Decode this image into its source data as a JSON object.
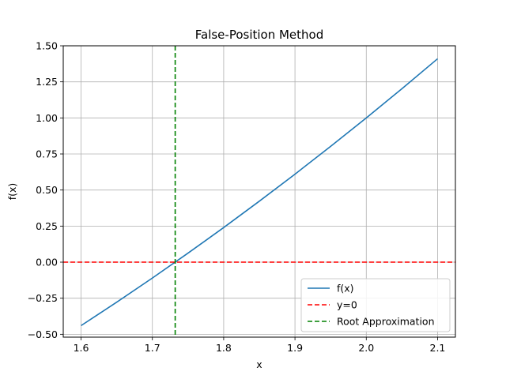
{
  "chart_data": {
    "type": "line",
    "title": "False-Position Method",
    "xlabel": "x",
    "ylabel": "f(x)",
    "xlim": [
      1.575,
      2.125
    ],
    "ylim": [
      -0.52,
      1.5
    ],
    "xticks": [
      1.6,
      1.7,
      1.8,
      1.9,
      2.0,
      2.1
    ],
    "xtick_labels": [
      "1.6",
      "1.7",
      "1.8",
      "1.9",
      "2.0",
      "2.1"
    ],
    "yticks": [
      -0.5,
      -0.25,
      0.0,
      0.25,
      0.5,
      0.75,
      1.0,
      1.25,
      1.5
    ],
    "ytick_labels": [
      "−0.50",
      "−0.25",
      "0.00",
      "0.25",
      "0.50",
      "0.75",
      "1.00",
      "1.25",
      "1.50"
    ],
    "grid": true,
    "legend_position": "bottom-right",
    "series": [
      {
        "name": "f(x)",
        "style": "solid",
        "color": "#1f77b4",
        "x": [
          1.6,
          1.65,
          1.7,
          1.75,
          1.8,
          1.85,
          1.9,
          1.95,
          2.0,
          2.05,
          2.1
        ],
        "y": [
          -0.44,
          -0.2775,
          -0.11,
          0.0625,
          0.24,
          0.4225,
          0.61,
          0.8025,
          1.0,
          1.2025,
          1.41
        ]
      },
      {
        "name": "y=0",
        "style": "dashed",
        "orientation": "horizontal",
        "color": "#ff0000",
        "y": 0.0
      },
      {
        "name": "Root Approximation",
        "style": "dashed",
        "orientation": "vertical",
        "color": "#008000",
        "x": 1.732
      }
    ]
  }
}
